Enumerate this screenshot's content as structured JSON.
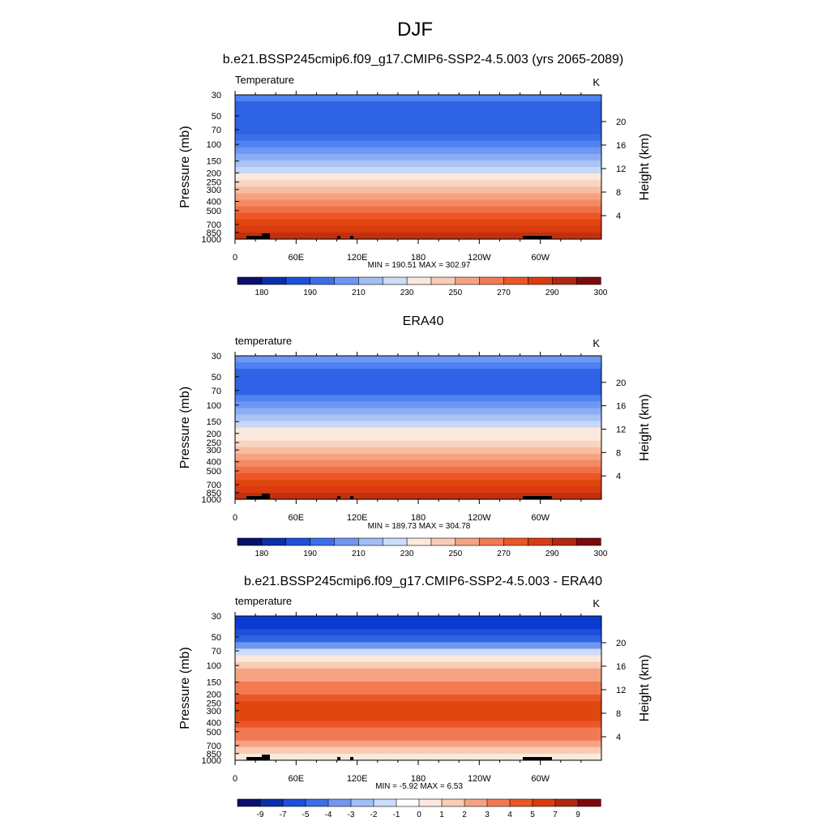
{
  "figure": {
    "title": "DJF"
  },
  "chart_data": [
    {
      "type": "heatmap",
      "title": "b.e21.BSSP245cmip6.f09_g17.CMIP6-SSP2-4.5.003 (yrs 2065-2089)",
      "variable_label": "Temperature",
      "units": "K",
      "xlabel": "",
      "ylabel": "Pressure (mb)",
      "ylabel_right": "Height (km)",
      "x_ticks": [
        "0",
        "60E",
        "120E",
        "180",
        "120W",
        "60W"
      ],
      "pressure_ticks": [
        30,
        50,
        70,
        100,
        150,
        200,
        250,
        300,
        400,
        500,
        700,
        850,
        1000
      ],
      "height_ticks": [
        20,
        16,
        12,
        8,
        4
      ],
      "stats": "MIN = 190.51  MAX = 302.97",
      "min": 190.51,
      "max": 302.97,
      "colorbar_labels": [
        "180",
        "190",
        "210",
        "230",
        "250",
        "270",
        "290",
        "300"
      ],
      "colorbar_colors": [
        "#08106b",
        "#0a2fa8",
        "#1d4fd9",
        "#3b6ee8",
        "#6f97f2",
        "#a1bef6",
        "#cddcf8",
        "#fbe9de",
        "#f9ccb5",
        "#f6a383",
        "#f27a52",
        "#ec5528",
        "#d93b0e",
        "#b02812",
        "#7d0a0a"
      ],
      "profile_colors": [
        "#4f82f2",
        "#2e63e6",
        "#2e63e6",
        "#2e63e6",
        "#2e63e6",
        "#2e63e6",
        "#3c6fe9",
        "#4f82f2",
        "#6f97f2",
        "#8cadf4",
        "#a9c3f6",
        "#c6d8f8",
        "#fbe9de",
        "#f9d4c0",
        "#f8bea3",
        "#f6a383",
        "#f38a62",
        "#f07046",
        "#ec5528",
        "#e0460f",
        "#d93b0e",
        "#c0300e"
      ]
    },
    {
      "type": "heatmap",
      "title": "ERA40",
      "variable_label": "temperature",
      "units": "K",
      "xlabel": "",
      "ylabel": "Pressure (mb)",
      "ylabel_right": "Height (km)",
      "x_ticks": [
        "0",
        "60E",
        "120E",
        "180",
        "120W",
        "60W"
      ],
      "pressure_ticks": [
        30,
        50,
        70,
        100,
        150,
        200,
        250,
        300,
        400,
        500,
        700,
        850,
        1000
      ],
      "height_ticks": [
        20,
        16,
        12,
        8,
        4
      ],
      "stats": "MIN = 189.73  MAX = 304.78",
      "min": 189.73,
      "max": 304.78,
      "colorbar_labels": [
        "180",
        "190",
        "210",
        "230",
        "250",
        "270",
        "290",
        "300"
      ],
      "colorbar_colors": [
        "#08106b",
        "#0a2fa8",
        "#1d4fd9",
        "#3b6ee8",
        "#6f97f2",
        "#a1bef6",
        "#cddcf8",
        "#fbe9de",
        "#f9ccb5",
        "#f6a383",
        "#f27a52",
        "#ec5528",
        "#d93b0e",
        "#b02812",
        "#7d0a0a"
      ],
      "profile_colors": [
        "#6f97f2",
        "#4f82f2",
        "#2e63e6",
        "#2e63e6",
        "#2e63e6",
        "#2e63e6",
        "#4f82f2",
        "#6f97f2",
        "#8cadf4",
        "#a9c3f6",
        "#c6d8f8",
        "#fbe9de",
        "#fbe9de",
        "#f9d4c0",
        "#f8bea3",
        "#f6a383",
        "#f38a62",
        "#f07046",
        "#ec5528",
        "#e0460f",
        "#d93b0e",
        "#c0300e"
      ]
    },
    {
      "type": "heatmap",
      "title": "b.e21.BSSP245cmip6.f09_g17.CMIP6-SSP2-4.5.003 - ERA40",
      "variable_label": "temperature",
      "units": "K",
      "xlabel": "",
      "ylabel": "Pressure (mb)",
      "ylabel_right": "Height (km)",
      "x_ticks": [
        "0",
        "60E",
        "120E",
        "180",
        "120W",
        "60W"
      ],
      "pressure_ticks": [
        30,
        50,
        70,
        100,
        150,
        200,
        250,
        300,
        400,
        500,
        700,
        850,
        1000
      ],
      "height_ticks": [
        20,
        16,
        12,
        8,
        4
      ],
      "stats": "MIN =  -5.92  MAX =   6.53",
      "min": -5.92,
      "max": 6.53,
      "colorbar_labels": [
        "-9",
        "-7",
        "-5",
        "-4",
        "-3",
        "-2",
        "-1",
        "0",
        "1",
        "2",
        "3",
        "4",
        "5",
        "7",
        "9"
      ],
      "colorbar_colors": [
        "#08106b",
        "#0a2fa8",
        "#1d4fd9",
        "#3b6ee8",
        "#6f97f2",
        "#a1bef6",
        "#cddcf8",
        "#ffffff",
        "#fbe9de",
        "#f9ccb5",
        "#f6a383",
        "#f27a52",
        "#ec5528",
        "#d93b0e",
        "#b02812",
        "#7d0a0a"
      ],
      "profile_colors": [
        "#0a3bd0",
        "#0a3bd0",
        "#1d4fd9",
        "#2e63e6",
        "#6f97f2",
        "#cddcf8",
        "#fbe9de",
        "#f9ccb5",
        "#f6a383",
        "#f6a383",
        "#f27a52",
        "#f27a52",
        "#ec5528",
        "#e0460f",
        "#e0460f",
        "#e0460f",
        "#ec5528",
        "#f27a52",
        "#f27a52",
        "#f6a383",
        "#f9ccb5",
        "#fbe9de"
      ]
    }
  ]
}
